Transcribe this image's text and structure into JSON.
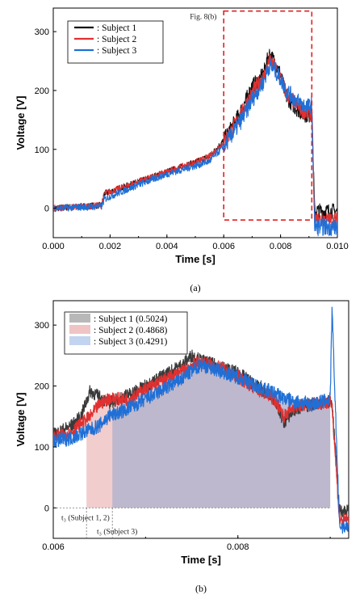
{
  "chart_data": [
    {
      "type": "line",
      "panel": "a",
      "caption": "(a)",
      "xlabel": "Time [s]",
      "ylabel": "Voltage [V]",
      "xlim": [
        0.0,
        0.01
      ],
      "ylim": [
        -50,
        340
      ],
      "xticks": [
        0.0,
        0.002,
        0.004,
        0.006,
        0.008,
        0.01
      ],
      "xtick_labels": [
        "0.000",
        "0.002",
        "0.004",
        "0.006",
        "0.008",
        "0.010"
      ],
      "yticks": [
        0,
        100,
        200,
        300
      ],
      "ytick_labels": [
        "0",
        "100",
        "200",
        "300"
      ],
      "legend_position": "top-left",
      "annotation": {
        "text": "Fig. 8(b)",
        "box_x": [
          0.006,
          0.0091
        ],
        "box_y": [
          -20,
          335
        ],
        "color": "#e02020"
      },
      "series": [
        {
          "name": ": Subject 1",
          "color": "#111111",
          "x": [
            0.0,
            0.0017,
            0.0018,
            0.002,
            0.003,
            0.004,
            0.005,
            0.0055,
            0.006,
            0.0065,
            0.0068,
            0.007,
            0.0072,
            0.0074,
            0.0076,
            0.0078,
            0.008,
            0.0082,
            0.0085,
            0.0088,
            0.009,
            0.0091,
            0.0092,
            0.01
          ],
          "y": [
            0,
            5,
            25,
            28,
            45,
            62,
            78,
            88,
            115,
            155,
            185,
            208,
            215,
            228,
            262,
            248,
            228,
            190,
            172,
            160,
            158,
            160,
            -5,
            -5
          ]
        },
        {
          "name": ": Subject 2",
          "color": "#e03030",
          "x": [
            0.0,
            0.0017,
            0.0018,
            0.002,
            0.003,
            0.004,
            0.005,
            0.0055,
            0.006,
            0.0065,
            0.0068,
            0.007,
            0.0072,
            0.0074,
            0.0076,
            0.0078,
            0.008,
            0.0082,
            0.0085,
            0.0088,
            0.009,
            0.0091,
            0.0092,
            0.01
          ],
          "y": [
            0,
            5,
            25,
            28,
            45,
            62,
            78,
            88,
            112,
            150,
            178,
            195,
            210,
            222,
            250,
            240,
            222,
            195,
            178,
            165,
            160,
            160,
            -20,
            -20
          ]
        },
        {
          "name": ": Subject 3",
          "color": "#1f6fd6",
          "x": [
            0.0,
            0.0017,
            0.0018,
            0.002,
            0.003,
            0.004,
            0.005,
            0.0055,
            0.006,
            0.0065,
            0.0068,
            0.007,
            0.0072,
            0.0074,
            0.0076,
            0.0078,
            0.008,
            0.0082,
            0.0085,
            0.0088,
            0.009,
            0.0091,
            0.0092,
            0.01
          ],
          "y": [
            0,
            3,
            15,
            20,
            40,
            58,
            72,
            80,
            105,
            140,
            165,
            185,
            200,
            215,
            242,
            235,
            220,
            200,
            185,
            175,
            172,
            178,
            -32,
            -32
          ]
        }
      ]
    },
    {
      "type": "area",
      "panel": "b",
      "caption": "(b)",
      "xlabel": "Time [s]",
      "ylabel": "Voltage [V]",
      "xlim": [
        0.006,
        0.0092
      ],
      "ylim": [
        -50,
        340
      ],
      "xticks": [
        0.006,
        0.008
      ],
      "xtick_labels": [
        "0.006",
        "0.008"
      ],
      "yticks": [
        0,
        100,
        200,
        300
      ],
      "ytick_labels": [
        "0",
        "100",
        "200",
        "300"
      ],
      "legend_position": "top-left",
      "annotations": [
        {
          "text": "t₃ (Subject 1, 2)",
          "x": 0.00636
        },
        {
          "text": "t₃ (Subject 3)",
          "x": 0.00664
        }
      ],
      "series": [
        {
          "name": ": Subject 1 (0.5024)",
          "color": "#3a3a3a",
          "fill": "#b8b8b8",
          "x": [
            0.006,
            0.0062,
            0.0063,
            0.0064,
            0.0065,
            0.0066,
            0.0068,
            0.007,
            0.0072,
            0.0074,
            0.0075,
            0.0076,
            0.0078,
            0.008,
            0.0082,
            0.0084,
            0.0085,
            0.0086,
            0.0088,
            0.009,
            0.00902,
            0.0091,
            0.0092
          ],
          "y": [
            120,
            135,
            150,
            192,
            182,
            172,
            185,
            200,
            218,
            235,
            250,
            242,
            232,
            222,
            200,
            178,
            140,
            160,
            170,
            175,
            172,
            -5,
            -5
          ]
        },
        {
          "name": ": Subject 2 (0.4868)",
          "color": "#e03030",
          "fill": "#f0c4c4",
          "x": [
            0.006,
            0.0062,
            0.0063,
            0.0064,
            0.0065,
            0.0066,
            0.0068,
            0.007,
            0.0072,
            0.0074,
            0.0075,
            0.0076,
            0.0078,
            0.008,
            0.0082,
            0.0084,
            0.0085,
            0.0086,
            0.0088,
            0.009,
            0.00902,
            0.0091,
            0.0092
          ],
          "y": [
            115,
            125,
            138,
            150,
            170,
            180,
            178,
            195,
            210,
            225,
            235,
            240,
            230,
            215,
            195,
            178,
            150,
            165,
            172,
            172,
            170,
            -20,
            -20
          ]
        },
        {
          "name": ": Subject 3 (0.4291)",
          "color": "#1f6fd6",
          "fill": "#c2d4ef",
          "x": [
            0.006,
            0.0062,
            0.0063,
            0.0064,
            0.0065,
            0.0066,
            0.0068,
            0.007,
            0.0072,
            0.0074,
            0.0075,
            0.0076,
            0.0078,
            0.008,
            0.0082,
            0.0084,
            0.0085,
            0.0086,
            0.0088,
            0.009,
            0.00902,
            0.0091,
            0.0092
          ],
          "y": [
            108,
            115,
            122,
            128,
            135,
            150,
            162,
            178,
            195,
            212,
            225,
            235,
            225,
            215,
            200,
            188,
            180,
            175,
            170,
            178,
            325,
            -30,
            -30
          ]
        }
      ],
      "shaded_regions": [
        {
          "series": 1,
          "x_start": 0.00636,
          "x_end": 0.009,
          "fill": "#f0c4c4"
        },
        {
          "series": 2,
          "x_start": 0.00664,
          "x_end": 0.009,
          "fill": "#b4b4cc"
        }
      ]
    }
  ]
}
